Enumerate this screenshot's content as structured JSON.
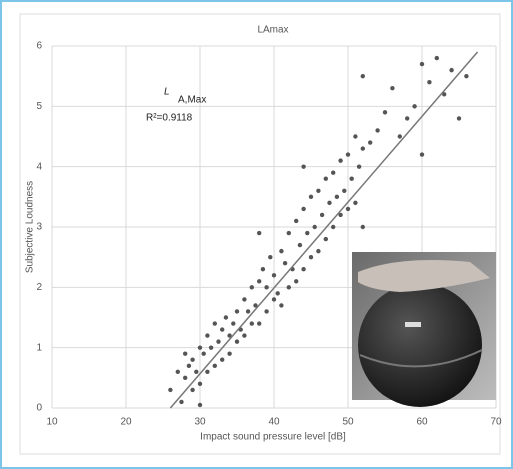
{
  "chart_data": {
    "type": "scatter",
    "title": "LAmax",
    "x_label": "Impact sound pressure level [dB]",
    "y_label": "Subjective Loudness",
    "annotation": {
      "symbol": "L",
      "subscript": "A,Max",
      "r2": "R²=0.9118"
    },
    "xlim": [
      10,
      70
    ],
    "xticks": [
      10,
      20,
      30,
      40,
      50,
      60,
      70
    ],
    "ylim": [
      0,
      6
    ],
    "yticks": [
      0,
      1,
      2,
      3,
      4,
      5,
      6
    ],
    "grid": true,
    "color": "#555555",
    "trend_color": "#777777",
    "x": [
      26,
      27,
      27.5,
      28,
      28,
      28.5,
      29,
      29,
      29.5,
      30,
      30,
      30.5,
      31,
      31,
      31.5,
      32,
      32,
      32.5,
      33,
      33,
      33.5,
      34,
      34,
      34.5,
      35,
      35,
      35.5,
      36,
      36,
      36.5,
      37,
      37,
      37.5,
      38,
      38,
      38.5,
      39,
      39,
      39.5,
      40,
      40,
      40.5,
      41,
      41,
      41.5,
      42,
      42,
      42.5,
      43,
      43,
      43.5,
      44,
      44,
      44.5,
      45,
      45,
      45.5,
      46,
      46,
      46.5,
      47,
      47,
      47.5,
      48,
      48,
      48.5,
      49,
      49,
      49.5,
      50,
      50,
      50.5,
      51,
      51,
      51.5,
      52,
      52,
      53,
      54,
      55,
      56,
      57,
      58,
      59,
      60,
      61,
      62,
      63,
      64,
      65,
      66,
      30,
      38,
      44,
      52,
      60
    ],
    "values": [
      0.3,
      0.6,
      0.1,
      0.5,
      0.9,
      0.7,
      0.3,
      0.8,
      0.6,
      1.0,
      0.4,
      0.9,
      1.2,
      0.6,
      1.0,
      1.4,
      0.7,
      1.1,
      1.3,
      0.8,
      1.5,
      1.2,
      0.9,
      1.4,
      1.6,
      1.1,
      1.3,
      1.8,
      1.2,
      1.6,
      1.4,
      2.0,
      1.7,
      2.1,
      1.4,
      2.3,
      1.6,
      2.0,
      2.5,
      1.8,
      2.2,
      1.9,
      2.6,
      1.7,
      2.4,
      2.0,
      2.9,
      2.3,
      3.1,
      2.1,
      2.7,
      3.3,
      2.3,
      2.9,
      3.5,
      2.5,
      3.0,
      2.6,
      3.6,
      3.2,
      3.8,
      2.8,
      3.4,
      3.0,
      3.9,
      3.5,
      3.2,
      4.1,
      3.6,
      3.3,
      4.2,
      3.8,
      4.5,
      3.4,
      4.0,
      5.5,
      4.3,
      4.4,
      4.6,
      4.9,
      5.3,
      4.5,
      4.8,
      5.0,
      4.2,
      5.4,
      5.8,
      5.2,
      5.6,
      4.8,
      5.5,
      0.05,
      2.9,
      4.0,
      3.0,
      5.7
    ],
    "trendline": {
      "x": [
        26,
        67.5
      ],
      "y": [
        0,
        5.9
      ]
    }
  }
}
